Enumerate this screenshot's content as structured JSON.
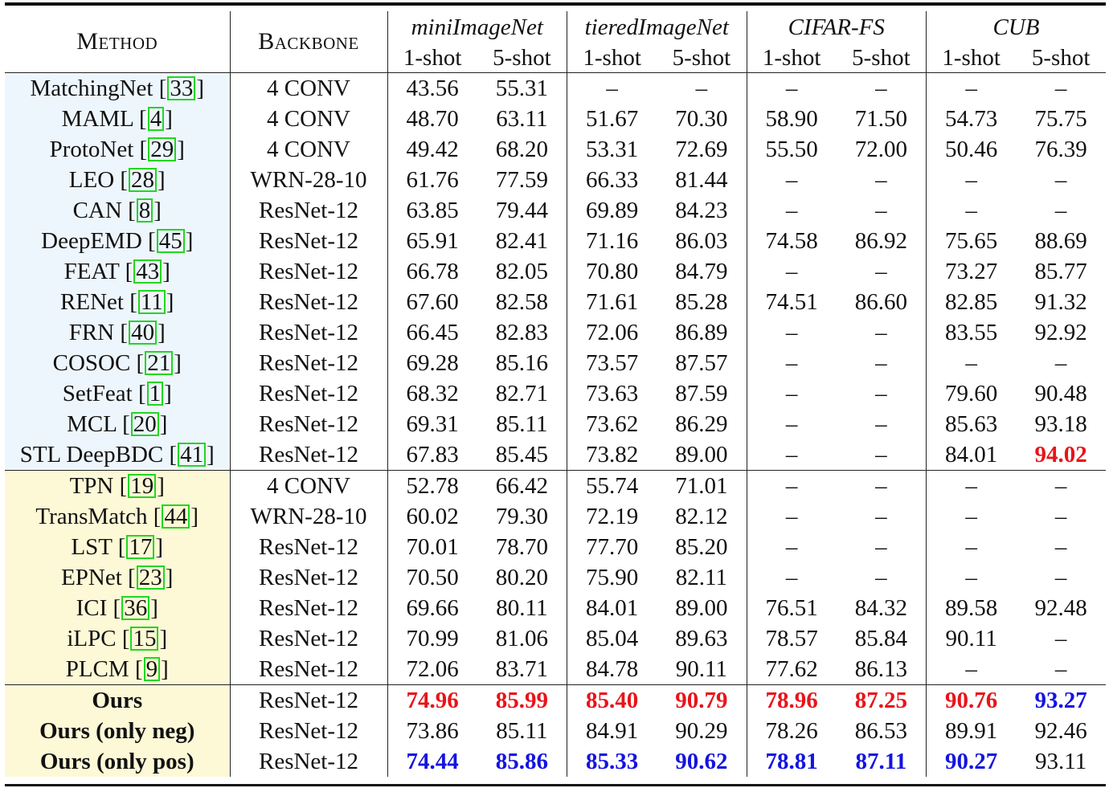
{
  "table": {
    "headers": {
      "method": "Method",
      "backbone": "Backbone",
      "datasets": [
        "miniImageNet",
        "tieredImageNet",
        "CIFAR-FS",
        "CUB"
      ],
      "shots": [
        "1-shot",
        "5-shot",
        "1-shot",
        "5-shot",
        "1-shot",
        "5-shot",
        "1-shot",
        "5-shot"
      ]
    },
    "colors": {
      "best": "#e8141a",
      "second": "#1414e0",
      "group1_bg": "#eef6fd",
      "group2_bg": "#fdf8d6",
      "ref_box": "#22d622"
    },
    "rows": [
      {
        "name": "MatchingNet [",
        "ref": "33",
        "close": "]",
        "backbone": "4 CONV",
        "values": [
          "43.56",
          "55.31",
          "–",
          "–",
          "–",
          "–",
          "–",
          "–"
        ]
      },
      {
        "name": "MAML [",
        "ref": "4",
        "close": "]",
        "backbone": "4 CONV",
        "values": [
          "48.70",
          "63.11",
          "51.67",
          "70.30",
          "58.90",
          "71.50",
          "54.73",
          "75.75"
        ]
      },
      {
        "name": "ProtoNet [",
        "ref": "29",
        "close": "]",
        "backbone": "4 CONV",
        "values": [
          "49.42",
          "68.20",
          "53.31",
          "72.69",
          "55.50",
          "72.00",
          "50.46",
          "76.39"
        ]
      },
      {
        "name": "LEO [",
        "ref": "28",
        "close": "]",
        "backbone": "WRN-28-10",
        "values": [
          "61.76",
          "77.59",
          "66.33",
          "81.44",
          "–",
          "–",
          "–",
          "–"
        ]
      },
      {
        "name": "CAN [",
        "ref": "8",
        "close": "]",
        "backbone": "ResNet-12",
        "values": [
          "63.85",
          "79.44",
          "69.89",
          "84.23",
          "–",
          "–",
          "–",
          "–"
        ]
      },
      {
        "name": "DeepEMD [",
        "ref": "45",
        "close": "]",
        "backbone": "ResNet-12",
        "values": [
          "65.91",
          "82.41",
          "71.16",
          "86.03",
          "74.58",
          "86.92",
          "75.65",
          "88.69"
        ]
      },
      {
        "name": "FEAT [",
        "ref": "43",
        "close": "]",
        "backbone": "ResNet-12",
        "values": [
          "66.78",
          "82.05",
          "70.80",
          "84.79",
          "–",
          "–",
          "73.27",
          "85.77"
        ]
      },
      {
        "name": "RENet [",
        "ref": "11",
        "close": "]",
        "backbone": "ResNet-12",
        "values": [
          "67.60",
          "82.58",
          "71.61",
          "85.28",
          "74.51",
          "86.60",
          "82.85",
          "91.32"
        ]
      },
      {
        "name": "FRN [",
        "ref": "40",
        "close": "]",
        "backbone": "ResNet-12",
        "values": [
          "66.45",
          "82.83",
          "72.06",
          "86.89",
          "–",
          "–",
          "83.55",
          "92.92"
        ]
      },
      {
        "name": "COSOC [",
        "ref": "21",
        "close": "]",
        "backbone": "ResNet-12",
        "values": [
          "69.28",
          "85.16",
          "73.57",
          "87.57",
          "–",
          "–",
          "–",
          "–"
        ]
      },
      {
        "name": "SetFeat [",
        "ref": "1",
        "close": "]",
        "backbone": "ResNet-12",
        "values": [
          "68.32",
          "82.71",
          "73.63",
          "87.59",
          "–",
          "–",
          "79.60",
          "90.48"
        ]
      },
      {
        "name": "MCL [",
        "ref": "20",
        "close": "]",
        "backbone": "ResNet-12",
        "values": [
          "69.31",
          "85.11",
          "73.62",
          "86.29",
          "–",
          "–",
          "85.63",
          "93.18"
        ]
      },
      {
        "name": "STL DeepBDC [",
        "ref": "41",
        "close": "]",
        "backbone": "ResNet-12",
        "values": [
          "67.83",
          "85.45",
          "73.82",
          "89.00",
          "–",
          "–",
          "84.01",
          "94.02"
        ]
      },
      {
        "name": "TPN [",
        "ref": "19",
        "close": "]",
        "backbone": "4 CONV",
        "values": [
          "52.78",
          "66.42",
          "55.74",
          "71.01",
          "–",
          "–",
          "–",
          "–"
        ]
      },
      {
        "name": "TransMatch [",
        "ref": "44",
        "close": "]",
        "backbone": "WRN-28-10",
        "values": [
          "60.02",
          "79.30",
          "72.19",
          "82.12",
          "–",
          "–",
          "–",
          "–"
        ]
      },
      {
        "name": "LST [",
        "ref": "17",
        "close": "]",
        "backbone": "ResNet-12",
        "values": [
          "70.01",
          "78.70",
          "77.70",
          "85.20",
          "–",
          "–",
          "–",
          "–"
        ]
      },
      {
        "name": "EPNet [",
        "ref": "23",
        "close": "]",
        "backbone": "ResNet-12",
        "values": [
          "70.50",
          "80.20",
          "75.90",
          "82.11",
          "–",
          "–",
          "–",
          "–"
        ]
      },
      {
        "name": "ICI [",
        "ref": "36",
        "close": "]",
        "backbone": "ResNet-12",
        "values": [
          "69.66",
          "80.11",
          "84.01",
          "89.00",
          "76.51",
          "84.32",
          "89.58",
          "92.48"
        ]
      },
      {
        "name": "iLPC [",
        "ref": "15",
        "close": "]",
        "backbone": "ResNet-12",
        "values": [
          "70.99",
          "81.06",
          "85.04",
          "89.63",
          "78.57",
          "85.84",
          "90.11",
          "–"
        ]
      },
      {
        "name": "PLCM [",
        "ref": "9",
        "close": "]",
        "backbone": "ResNet-12",
        "values": [
          "72.06",
          "83.71",
          "84.78",
          "90.11",
          "77.62",
          "86.13",
          "–",
          "–"
        ]
      },
      {
        "name": "Ours",
        "ref": "",
        "close": "",
        "backbone": "ResNet-12",
        "values": [
          "74.96",
          "85.99",
          "85.40",
          "90.79",
          "78.96",
          "87.25",
          "90.76",
          "93.27"
        ]
      },
      {
        "name": "Ours (only neg)",
        "ref": "",
        "close": "",
        "backbone": "ResNet-12",
        "values": [
          "73.86",
          "85.11",
          "84.91",
          "90.29",
          "78.26",
          "86.53",
          "89.91",
          "92.46"
        ]
      },
      {
        "name": "Ours (only pos)",
        "ref": "",
        "close": "",
        "backbone": "ResNet-12",
        "values": [
          "74.44",
          "85.86",
          "85.33",
          "90.62",
          "78.81",
          "87.11",
          "90.27",
          "93.11"
        ]
      }
    ],
    "highlights": {
      "best_red": [
        [
          12,
          7
        ],
        [
          20,
          0
        ],
        [
          20,
          1
        ],
        [
          20,
          2
        ],
        [
          20,
          3
        ],
        [
          20,
          4
        ],
        [
          20,
          5
        ],
        [
          20,
          6
        ]
      ],
      "second_blue": [
        [
          20,
          7
        ],
        [
          22,
          0
        ],
        [
          22,
          1
        ],
        [
          22,
          2
        ],
        [
          22,
          3
        ],
        [
          22,
          4
        ],
        [
          22,
          5
        ],
        [
          22,
          6
        ]
      ]
    }
  }
}
